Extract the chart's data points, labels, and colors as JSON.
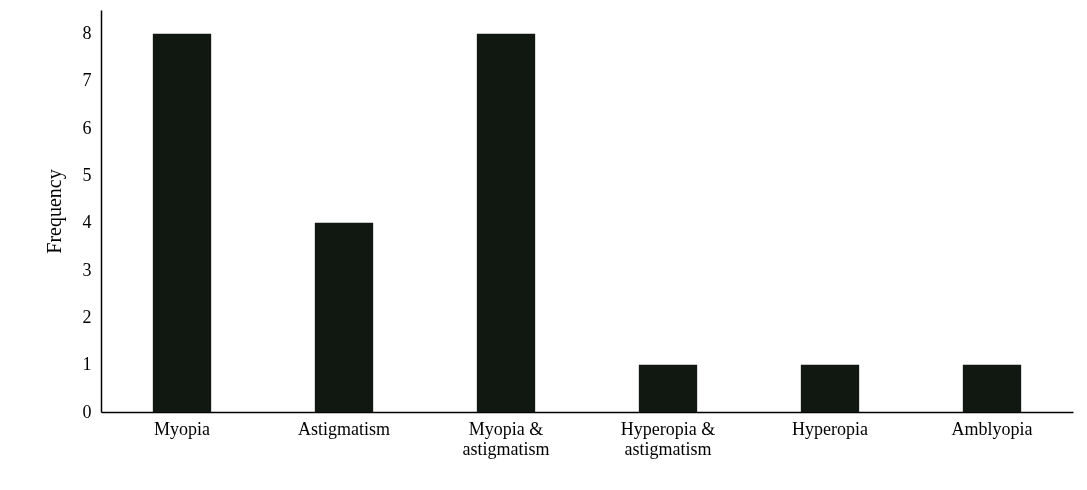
{
  "chart_data": {
    "type": "bar",
    "ylabel": "Frequency",
    "categories": [
      "Myopia",
      "Astigmatism",
      "Myopia & astigmatism",
      "Hyperopia & astigmatism",
      "Hyperopia",
      "Amblyopia"
    ],
    "values": [
      8,
      4,
      8,
      1,
      1,
      1
    ],
    "color": "#111811",
    "ylim": [
      0,
      8.5
    ],
    "yticks": [
      0,
      1,
      2,
      3,
      4,
      5,
      6,
      7,
      8
    ],
    "grid": false
  }
}
